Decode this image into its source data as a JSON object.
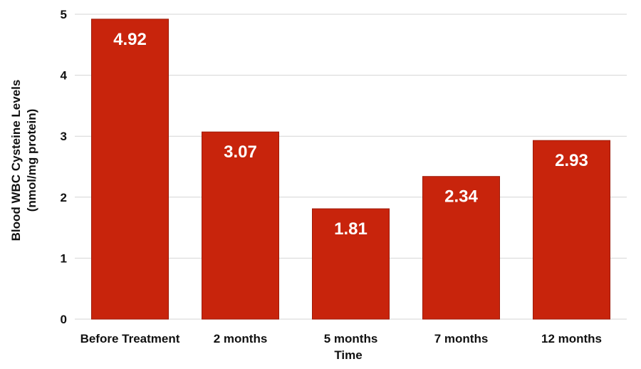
{
  "chart_data": {
    "type": "bar",
    "categories": [
      "Before Treatment",
      "2 months",
      "5 months",
      "7 months",
      "12 months"
    ],
    "values": [
      4.92,
      3.07,
      1.81,
      2.34,
      2.93
    ],
    "data_labels": [
      "4.92",
      "3.07",
      "1.81",
      "2.34",
      "2.93"
    ],
    "title": "",
    "xlabel": "Time",
    "ylabel": [
      "Blood WBC Cysteine Levels",
      "(nmol/mg protein)"
    ],
    "ylim": [
      0,
      5
    ],
    "yticks": [
      "0",
      "1",
      "2",
      "3",
      "4",
      "5"
    ],
    "grid": true,
    "legend": "none",
    "colors": {
      "bar": "#c8240c",
      "bar_edge": "#9e1a08",
      "grid": "#d4d4d4",
      "data_label": "#ffffff",
      "text": "#111111"
    }
  }
}
